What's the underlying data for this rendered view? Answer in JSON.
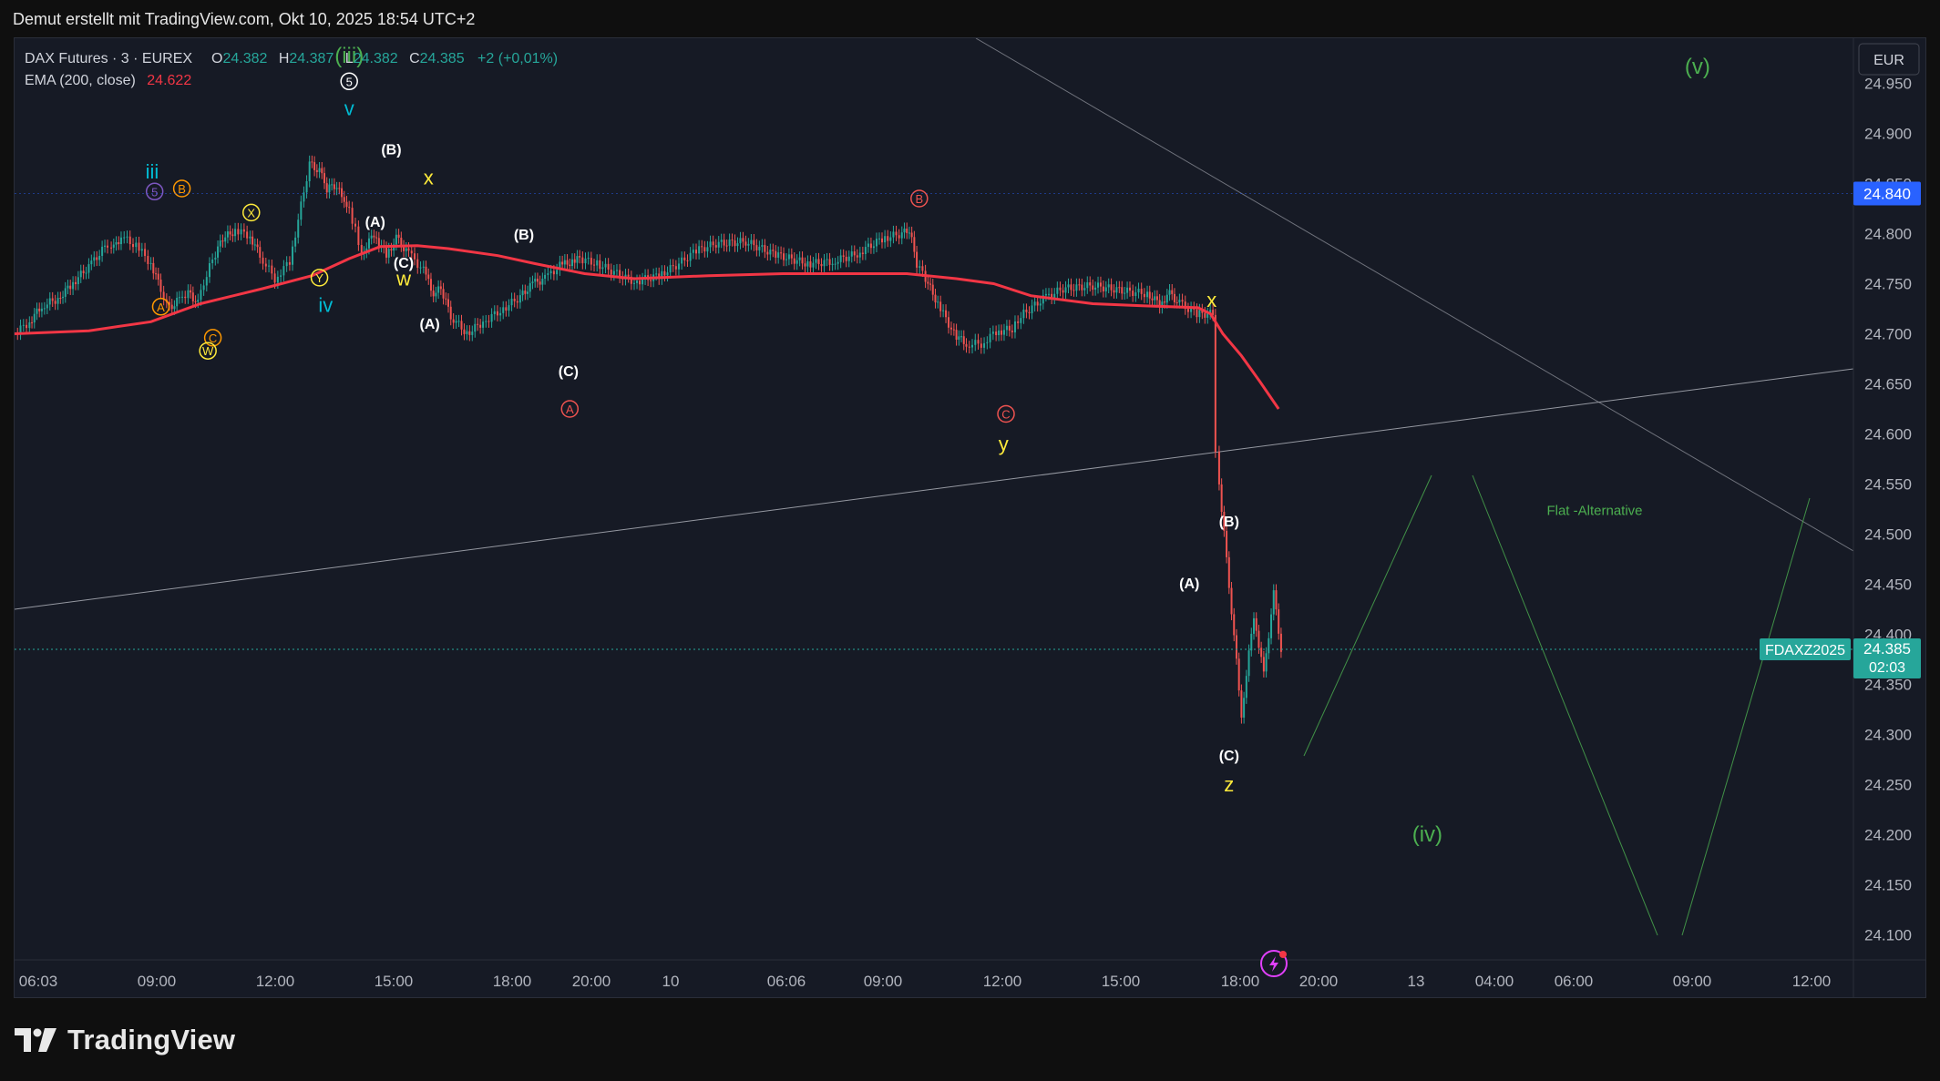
{
  "header": {
    "text": "Demut erstellt mit TradingView.com, Okt 10, 2025 18:54 UTC+2"
  },
  "legend": {
    "symbol": "DAX Futures · 3 · EUREX",
    "o_label": "O",
    "o_value": "24.382",
    "h_label": "H",
    "h_value": "24.387",
    "l_label": "L",
    "l_value": "24.382",
    "c_label": "C",
    "c_value": "24.385",
    "change": "+2 (+0,01%)",
    "ema_label": "EMA (200, close)",
    "ema_value": "24.622"
  },
  "currency_button": "EUR",
  "footer": {
    "brand": "TradingView"
  },
  "colors": {
    "background": "#161a25",
    "up": "#26a69a",
    "down": "#ef5350",
    "ema": "#f23645",
    "green_label": "#4caf50",
    "yellow_label": "#ffeb3b",
    "cyan_label": "#00bcd4",
    "orange_label": "#ff9800"
  },
  "chart_data": {
    "type": "line",
    "title": "",
    "xlabel": "",
    "ylabel": "",
    "ylim": [
      24075,
      24995
    ],
    "y_ticks": [
      "24.950",
      "24.900",
      "24.850",
      "24.800",
      "24.750",
      "24.700",
      "24.650",
      "24.600",
      "24.550",
      "24.500",
      "24.450",
      "24.400",
      "24.350",
      "24.300",
      "24.250",
      "24.200",
      "24.150",
      "24.100"
    ],
    "x_ticks": [
      "06:03",
      "09:00",
      "12:00",
      "15:00",
      "18:00",
      "20:00",
      "10",
      "06:06",
      "09:00",
      "12:00",
      "15:00",
      "18:00",
      "20:00",
      "13",
      "04:00",
      "06:00",
      "09:00",
      "12:00"
    ],
    "price_label": {
      "symbol": "FDAXZ2025",
      "value": "24.385",
      "countdown": "02:03"
    },
    "level_label": {
      "value": "24.840"
    },
    "series": [
      {
        "name": "DAX Futures",
        "x": [
          0,
          12,
          22,
          35,
          45,
          62,
          75,
          78,
          86,
          98,
          110,
          118,
          125,
          133,
          140,
          148,
          155,
          162,
          168,
          178,
          190,
          198,
          210,
          222,
          238,
          246,
          252,
          258,
          266,
          270,
          275,
          280,
          290,
          300,
          308,
          318,
          330,
          338,
          344,
          352,
          365,
          378,
          392,
          408,
          418,
          428,
          440,
          450,
          456,
          470,
          486,
          500,
          520,
          536,
          550,
          566,
          590,
          612,
          640,
          660,
          680,
          700,
          716,
          722,
          728,
          735,
          745,
          758,
          768,
          780,
          792,
          805,
          812,
          830,
          846,
          870,
          885,
          900,
          914,
          924,
          932,
          940,
          954,
          967,
          969,
          972,
          980,
          990,
          1000,
          1008,
          1016,
          1022
        ],
        "values": [
          24700,
          24712,
          24728,
          24735,
          24748,
          24770,
          24790,
          24782,
          24797,
          24788,
          24770,
          24745,
          24725,
          24735,
          24742,
          24730,
          24760,
          24780,
          24795,
          24803,
          24798,
          24778,
          24755,
          24772,
          24870,
          24862,
          24845,
          24848,
          24835,
          24822,
          24805,
          24780,
          24800,
          24778,
          24795,
          24780,
          24763,
          24740,
          24745,
          24718,
          24700,
          24712,
          24723,
          24737,
          24750,
          24755,
          24768,
          24772,
          24775,
          24770,
          24760,
          24752,
          24758,
          24770,
          24783,
          24790,
          24792,
          24780,
          24770,
          24772,
          24780,
          24795,
          24800,
          24804,
          24770,
          24755,
          24730,
          24700,
          24690,
          24690,
          24702,
          24705,
          24718,
          24735,
          24745,
          24748,
          24745,
          24742,
          24740,
          24730,
          24740,
          24730,
          24720,
          24720,
          24580,
          24550,
          24450,
          24320,
          24420,
          24360,
          24440,
          24385
        ]
      },
      {
        "name": "EMA (200, close)",
        "x": [
          0,
          60,
          110,
          150,
          200,
          240,
          270,
          295,
          325,
          350,
          390,
          420,
          460,
          500,
          560,
          620,
          680,
          720,
          760,
          790,
          820,
          870,
          910,
          955,
          965,
          975,
          990,
          1005,
          1020
        ],
        "values": [
          24700,
          24703,
          24712,
          24730,
          24745,
          24758,
          24775,
          24787,
          24788,
          24785,
          24778,
          24770,
          24760,
          24755,
          24758,
          24760,
          24760,
          24760,
          24755,
          24750,
          24738,
          24730,
          24728,
          24726,
          24720,
          24700,
          24678,
          24652,
          24625
        ]
      }
    ],
    "annotations": [
      {
        "text": "(iii)",
        "x": 270,
        "y": 24978
      },
      {
        "text": "5",
        "x": 270,
        "y": 24952,
        "circled": true
      },
      {
        "text": "v",
        "x": 270,
        "y": 24925
      },
      {
        "text": "iii",
        "x": 111,
        "y": 24862
      },
      {
        "text": "5",
        "x": 113,
        "y": 24842,
        "circled": true
      },
      {
        "text": "B",
        "x": 135,
        "y": 24845,
        "circled": true
      },
      {
        "text": "X",
        "x": 191,
        "y": 24821,
        "circled": true
      },
      {
        "text": "A",
        "x": 118,
        "y": 24727,
        "circled": true
      },
      {
        "text": "C",
        "x": 160,
        "y": 24696,
        "circled": true
      },
      {
        "text": "W",
        "x": 156,
        "y": 24683,
        "circled": true
      },
      {
        "text": "Y",
        "x": 246,
        "y": 24756,
        "circled": true
      },
      {
        "text": "iv",
        "x": 251,
        "y": 24729
      },
      {
        "text": "(B)",
        "x": 304,
        "y": 24884
      },
      {
        "text": "x",
        "x": 334,
        "y": 24856
      },
      {
        "text": "(A)",
        "x": 291,
        "y": 24812
      },
      {
        "text": "(C)",
        "x": 314,
        "y": 24771
      },
      {
        "text": "w",
        "x": 314,
        "y": 24755
      },
      {
        "text": "(A)",
        "x": 335,
        "y": 24710
      },
      {
        "text": "(B)",
        "x": 411,
        "y": 24799
      },
      {
        "text": "(C)",
        "x": 447,
        "y": 24663
      },
      {
        "text": "A",
        "x": 448,
        "y": 24625,
        "circled": true
      },
      {
        "text": "B",
        "x": 730,
        "y": 24835,
        "circled": true
      },
      {
        "text": "C",
        "x": 800,
        "y": 24620,
        "circled": true
      },
      {
        "text": "y",
        "x": 798,
        "y": 24590
      },
      {
        "text": "x",
        "x": 966,
        "y": 24734
      },
      {
        "text": "(B)",
        "x": 980,
        "y": 24513
      },
      {
        "text": "(A)",
        "x": 948,
        "y": 24451
      },
      {
        "text": "(C)",
        "x": 980,
        "y": 24279
      },
      {
        "text": "z",
        "x": 980,
        "y": 24250
      },
      {
        "text": "(iv)",
        "x": 1140,
        "y": 24201
      },
      {
        "text": "(v)",
        "x": 1358,
        "y": 24967
      },
      {
        "text": "Flat -Alternative",
        "x": 1275,
        "y": 24524
      }
    ]
  }
}
